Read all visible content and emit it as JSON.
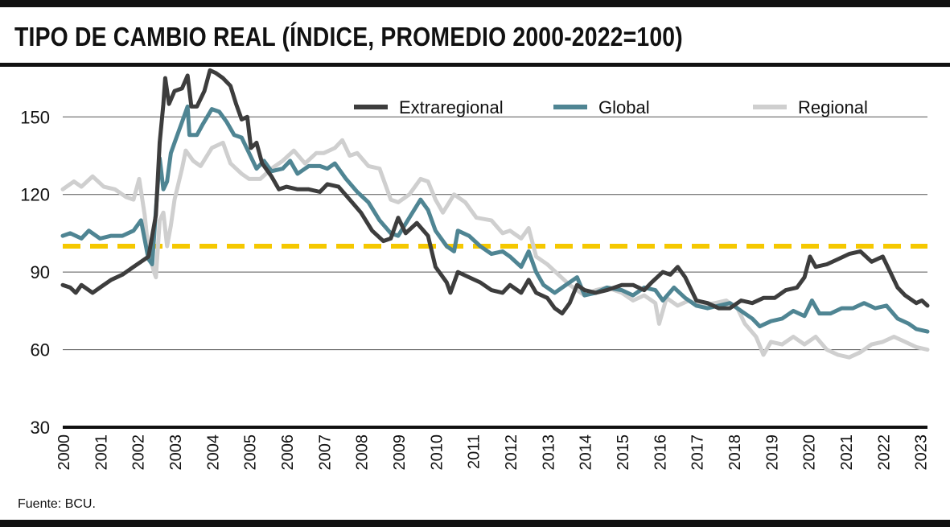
{
  "title": "TIPO DE CAMBIO REAL (ÍNDICE, PROMEDIO 2000-2022=100)",
  "source": "Fuente: BCU.",
  "chart_data": {
    "type": "line",
    "ylim": [
      30,
      170
    ],
    "yticks": [
      30,
      60,
      90,
      120,
      150
    ],
    "xlim": [
      2000.0,
      2023.2
    ],
    "xticks": [
      "2000",
      "2001",
      "2002",
      "2003",
      "2004",
      "2005",
      "2006",
      "2007",
      "2008",
      "2009",
      "2010",
      "2011",
      "2012",
      "2013",
      "2014",
      "2015",
      "2016",
      "2017",
      "2018",
      "2019",
      "2020",
      "2021",
      "2022",
      "2023"
    ],
    "grid": true,
    "legend_position": "top",
    "reference_line": {
      "value": 100,
      "color": "#f5c800",
      "style": "dashed"
    },
    "series": [
      {
        "name": "Regional",
        "color": "#cfcfcf",
        "points": [
          [
            2000.0,
            122
          ],
          [
            2000.3,
            125
          ],
          [
            2000.5,
            123
          ],
          [
            2000.8,
            127
          ],
          [
            2001.1,
            123
          ],
          [
            2001.4,
            122
          ],
          [
            2001.7,
            119
          ],
          [
            2001.9,
            118
          ],
          [
            2002.05,
            126
          ],
          [
            2002.2,
            112
          ],
          [
            2002.3,
            98
          ],
          [
            2002.45,
            90
          ],
          [
            2002.5,
            88
          ],
          [
            2002.6,
            110
          ],
          [
            2002.7,
            113
          ],
          [
            2002.8,
            100
          ],
          [
            2002.9,
            108
          ],
          [
            2003.0,
            118
          ],
          [
            2003.2,
            130
          ],
          [
            2003.3,
            137
          ],
          [
            2003.5,
            133
          ],
          [
            2003.7,
            131
          ],
          [
            2004.0,
            138
          ],
          [
            2004.3,
            140
          ],
          [
            2004.5,
            132
          ],
          [
            2004.8,
            128
          ],
          [
            2005.0,
            126
          ],
          [
            2005.3,
            126
          ],
          [
            2005.6,
            130
          ],
          [
            2005.9,
            133
          ],
          [
            2006.2,
            137
          ],
          [
            2006.5,
            132
          ],
          [
            2006.8,
            136
          ],
          [
            2007.0,
            136
          ],
          [
            2007.3,
            138
          ],
          [
            2007.5,
            141
          ],
          [
            2007.7,
            135
          ],
          [
            2007.9,
            136
          ],
          [
            2008.2,
            131
          ],
          [
            2008.5,
            130
          ],
          [
            2008.8,
            118
          ],
          [
            2009.0,
            117
          ],
          [
            2009.3,
            120
          ],
          [
            2009.6,
            126
          ],
          [
            2009.8,
            125
          ],
          [
            2010.0,
            118
          ],
          [
            2010.2,
            113
          ],
          [
            2010.5,
            120
          ],
          [
            2010.8,
            117
          ],
          [
            2011.1,
            111
          ],
          [
            2011.5,
            110
          ],
          [
            2011.8,
            105
          ],
          [
            2012.0,
            106
          ],
          [
            2012.3,
            103
          ],
          [
            2012.5,
            107
          ],
          [
            2012.7,
            96
          ],
          [
            2013.0,
            93
          ],
          [
            2013.3,
            89
          ],
          [
            2013.6,
            85
          ],
          [
            2014.0,
            81
          ],
          [
            2014.3,
            83
          ],
          [
            2014.6,
            84
          ],
          [
            2015.0,
            82
          ],
          [
            2015.3,
            79
          ],
          [
            2015.6,
            81
          ],
          [
            2015.9,
            78
          ],
          [
            2016.0,
            70
          ],
          [
            2016.2,
            80
          ],
          [
            2016.5,
            77
          ],
          [
            2016.8,
            79
          ],
          [
            2017.1,
            77
          ],
          [
            2017.5,
            78
          ],
          [
            2017.8,
            79
          ],
          [
            2018.1,
            76
          ],
          [
            2018.3,
            70
          ],
          [
            2018.6,
            65
          ],
          [
            2018.8,
            58
          ],
          [
            2019.0,
            63
          ],
          [
            2019.3,
            62
          ],
          [
            2019.6,
            65
          ],
          [
            2019.9,
            62
          ],
          [
            2020.2,
            65
          ],
          [
            2020.5,
            60
          ],
          [
            2020.8,
            58
          ],
          [
            2021.1,
            57
          ],
          [
            2021.4,
            59
          ],
          [
            2021.7,
            62
          ],
          [
            2022.0,
            63
          ],
          [
            2022.3,
            65
          ],
          [
            2022.6,
            63
          ],
          [
            2022.9,
            61
          ],
          [
            2023.2,
            60
          ]
        ]
      },
      {
        "name": "Global",
        "color": "#4f8593",
        "points": [
          [
            2000.0,
            104
          ],
          [
            2000.2,
            105
          ],
          [
            2000.5,
            103
          ],
          [
            2000.7,
            106
          ],
          [
            2001.0,
            103
          ],
          [
            2001.3,
            104
          ],
          [
            2001.6,
            104
          ],
          [
            2001.9,
            106
          ],
          [
            2002.1,
            110
          ],
          [
            2002.3,
            95
          ],
          [
            2002.4,
            93
          ],
          [
            2002.5,
            114
          ],
          [
            2002.6,
            134
          ],
          [
            2002.7,
            122
          ],
          [
            2002.8,
            125
          ],
          [
            2002.9,
            136
          ],
          [
            2003.0,
            140
          ],
          [
            2003.2,
            148
          ],
          [
            2003.35,
            154
          ],
          [
            2003.4,
            143
          ],
          [
            2003.6,
            143
          ],
          [
            2003.75,
            147
          ],
          [
            2004.0,
            153
          ],
          [
            2004.2,
            152
          ],
          [
            2004.4,
            148
          ],
          [
            2004.6,
            143
          ],
          [
            2004.8,
            142
          ],
          [
            2004.9,
            139
          ],
          [
            2005.0,
            136
          ],
          [
            2005.2,
            130
          ],
          [
            2005.4,
            133
          ],
          [
            2005.6,
            129
          ],
          [
            2005.9,
            130
          ],
          [
            2006.1,
            133
          ],
          [
            2006.3,
            128
          ],
          [
            2006.6,
            131
          ],
          [
            2006.9,
            131
          ],
          [
            2007.1,
            130
          ],
          [
            2007.3,
            132
          ],
          [
            2007.6,
            126
          ],
          [
            2007.9,
            121
          ],
          [
            2008.2,
            117
          ],
          [
            2008.5,
            110
          ],
          [
            2008.8,
            105
          ],
          [
            2009.0,
            104
          ],
          [
            2009.3,
            111
          ],
          [
            2009.6,
            118
          ],
          [
            2009.8,
            114
          ],
          [
            2010.0,
            106
          ],
          [
            2010.3,
            100
          ],
          [
            2010.5,
            98
          ],
          [
            2010.6,
            106
          ],
          [
            2010.9,
            104
          ],
          [
            2011.2,
            100
          ],
          [
            2011.5,
            97
          ],
          [
            2011.8,
            98
          ],
          [
            2012.0,
            96
          ],
          [
            2012.3,
            92
          ],
          [
            2012.5,
            98
          ],
          [
            2012.7,
            90
          ],
          [
            2012.9,
            85
          ],
          [
            2013.2,
            82
          ],
          [
            2013.5,
            85
          ],
          [
            2013.8,
            88
          ],
          [
            2014.0,
            81
          ],
          [
            2014.3,
            82
          ],
          [
            2014.6,
            84
          ],
          [
            2015.0,
            83
          ],
          [
            2015.3,
            81
          ],
          [
            2015.6,
            84
          ],
          [
            2015.9,
            83
          ],
          [
            2016.1,
            79
          ],
          [
            2016.4,
            84
          ],
          [
            2016.7,
            80
          ],
          [
            2017.0,
            77
          ],
          [
            2017.3,
            76
          ],
          [
            2017.6,
            77
          ],
          [
            2017.9,
            78
          ],
          [
            2018.2,
            75
          ],
          [
            2018.5,
            72
          ],
          [
            2018.7,
            69
          ],
          [
            2019.0,
            71
          ],
          [
            2019.3,
            72
          ],
          [
            2019.6,
            75
          ],
          [
            2019.9,
            73
          ],
          [
            2020.1,
            79
          ],
          [
            2020.3,
            74
          ],
          [
            2020.6,
            74
          ],
          [
            2020.9,
            76
          ],
          [
            2021.2,
            76
          ],
          [
            2021.5,
            78
          ],
          [
            2021.8,
            76
          ],
          [
            2022.1,
            77
          ],
          [
            2022.4,
            72
          ],
          [
            2022.7,
            70
          ],
          [
            2022.9,
            68
          ],
          [
            2023.2,
            67
          ]
        ]
      },
      {
        "name": "Extraregional",
        "color": "#3d3d3d",
        "points": [
          [
            2000.0,
            85
          ],
          [
            2000.2,
            84
          ],
          [
            2000.35,
            82
          ],
          [
            2000.5,
            85
          ],
          [
            2000.8,
            82
          ],
          [
            2001.0,
            84
          ],
          [
            2001.3,
            87
          ],
          [
            2001.6,
            89
          ],
          [
            2001.9,
            92
          ],
          [
            2002.1,
            94
          ],
          [
            2002.3,
            96
          ],
          [
            2002.5,
            112
          ],
          [
            2002.6,
            140
          ],
          [
            2002.7,
            155
          ],
          [
            2002.75,
            165
          ],
          [
            2002.85,
            155
          ],
          [
            2003.0,
            160
          ],
          [
            2003.2,
            161
          ],
          [
            2003.35,
            166
          ],
          [
            2003.45,
            154
          ],
          [
            2003.6,
            154
          ],
          [
            2003.8,
            160
          ],
          [
            2003.95,
            168
          ],
          [
            2004.1,
            167
          ],
          [
            2004.3,
            165
          ],
          [
            2004.5,
            162
          ],
          [
            2004.65,
            155
          ],
          [
            2004.8,
            149
          ],
          [
            2004.95,
            150
          ],
          [
            2005.05,
            138
          ],
          [
            2005.2,
            140
          ],
          [
            2005.35,
            132
          ],
          [
            2005.6,
            127
          ],
          [
            2005.8,
            122
          ],
          [
            2006.0,
            123
          ],
          [
            2006.3,
            122
          ],
          [
            2006.6,
            122
          ],
          [
            2006.9,
            121
          ],
          [
            2007.1,
            124
          ],
          [
            2007.4,
            123
          ],
          [
            2007.7,
            118
          ],
          [
            2008.0,
            113
          ],
          [
            2008.3,
            106
          ],
          [
            2008.6,
            102
          ],
          [
            2008.8,
            103
          ],
          [
            2009.0,
            111
          ],
          [
            2009.2,
            105
          ],
          [
            2009.5,
            109
          ],
          [
            2009.8,
            104
          ],
          [
            2010.0,
            92
          ],
          [
            2010.3,
            86
          ],
          [
            2010.4,
            82
          ],
          [
            2010.6,
            90
          ],
          [
            2010.9,
            88
          ],
          [
            2011.2,
            86
          ],
          [
            2011.5,
            83
          ],
          [
            2011.8,
            82
          ],
          [
            2012.0,
            85
          ],
          [
            2012.3,
            82
          ],
          [
            2012.5,
            87
          ],
          [
            2012.7,
            82
          ],
          [
            2013.0,
            80
          ],
          [
            2013.2,
            76
          ],
          [
            2013.4,
            74
          ],
          [
            2013.6,
            78
          ],
          [
            2013.8,
            85
          ],
          [
            2014.0,
            83
          ],
          [
            2014.3,
            82
          ],
          [
            2014.6,
            83
          ],
          [
            2015.0,
            85
          ],
          [
            2015.3,
            85
          ],
          [
            2015.6,
            83
          ],
          [
            2015.8,
            86
          ],
          [
            2016.1,
            90
          ],
          [
            2016.3,
            89
          ],
          [
            2016.5,
            92
          ],
          [
            2016.7,
            88
          ],
          [
            2017.0,
            79
          ],
          [
            2017.3,
            78
          ],
          [
            2017.6,
            76
          ],
          [
            2017.9,
            76
          ],
          [
            2018.2,
            79
          ],
          [
            2018.5,
            78
          ],
          [
            2018.8,
            80
          ],
          [
            2019.1,
            80
          ],
          [
            2019.4,
            83
          ],
          [
            2019.7,
            84
          ],
          [
            2019.9,
            88
          ],
          [
            2020.05,
            96
          ],
          [
            2020.2,
            92
          ],
          [
            2020.5,
            93
          ],
          [
            2020.8,
            95
          ],
          [
            2021.1,
            97
          ],
          [
            2021.4,
            98
          ],
          [
            2021.7,
            94
          ],
          [
            2022.0,
            96
          ],
          [
            2022.2,
            90
          ],
          [
            2022.4,
            84
          ],
          [
            2022.6,
            81
          ],
          [
            2022.9,
            78
          ],
          [
            2023.05,
            79
          ],
          [
            2023.2,
            77
          ]
        ]
      }
    ],
    "legend": [
      {
        "name": "Extraregional",
        "color": "#3d3d3d"
      },
      {
        "name": "Global",
        "color": "#4f8593"
      },
      {
        "name": "Regional",
        "color": "#cfcfcf"
      }
    ]
  }
}
